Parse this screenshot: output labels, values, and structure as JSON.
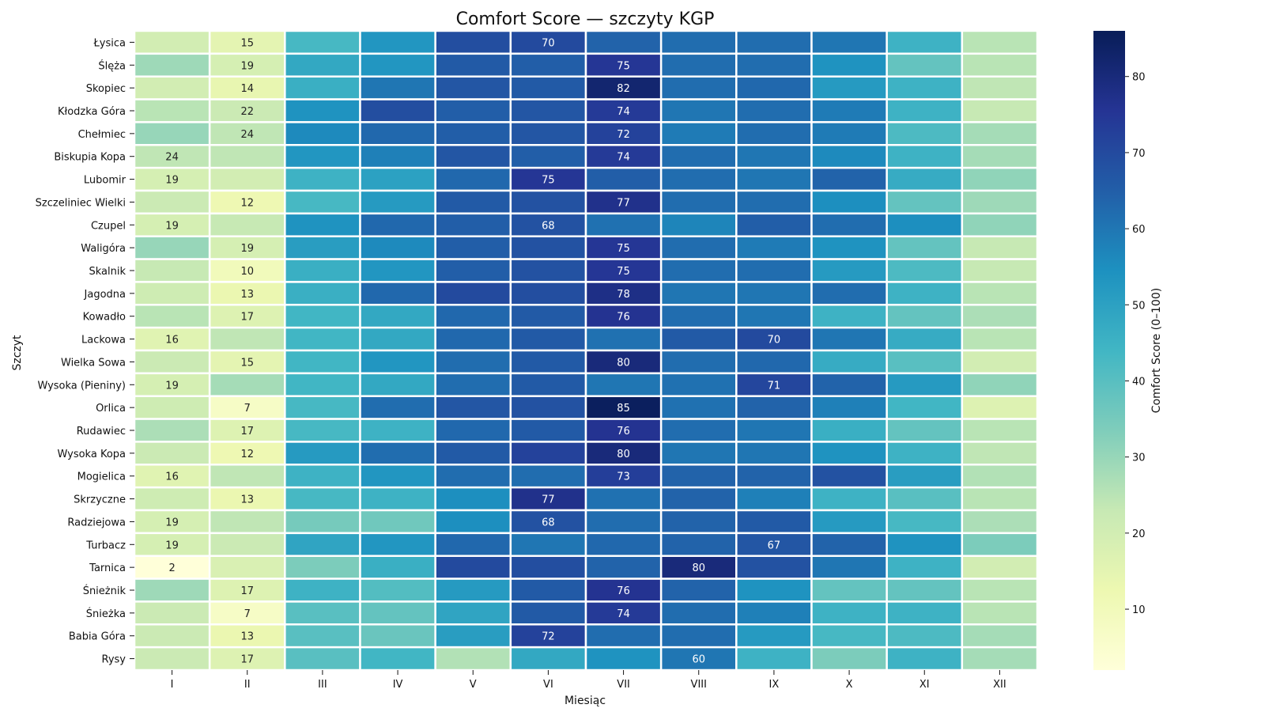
{
  "chart_data": {
    "type": "heatmap",
    "title": "Comfort Score — szczyty KGP",
    "xlabel": "Miesiąc",
    "ylabel": "Szczyt",
    "colorbar_label": "Comfort Score (0–100)",
    "colorbar_ticks": [
      10,
      20,
      30,
      40,
      50,
      60,
      70,
      80
    ],
    "colorbar_range": [
      2,
      86
    ],
    "colormap": "YlGnBu",
    "colormap_stops": [
      "#ffffd9",
      "#edf8b1",
      "#c7e9b4",
      "#7fcdbb",
      "#41b6c4",
      "#1d91c0",
      "#225ea8",
      "#253494",
      "#081d58"
    ],
    "annotations": "max and min month per row shown as text",
    "months": [
      "I",
      "II",
      "III",
      "IV",
      "V",
      "VI",
      "VII",
      "VIII",
      "IX",
      "X",
      "XI",
      "XII"
    ],
    "peaks": [
      {
        "name": "Łysica",
        "label_color": "#5aaed2",
        "values": [
          20,
          15,
          43,
          53,
          69,
          70,
          64,
          62,
          62,
          60,
          45,
          25
        ]
      },
      {
        "name": "Ślęża",
        "label_color": "#5aaed2",
        "values": [
          29,
          19,
          48,
          53,
          66,
          65,
          75,
          62,
          62,
          54,
          38,
          25
        ]
      },
      {
        "name": "Skopiec",
        "label_color": "#5aaed2",
        "values": [
          20,
          14,
          46,
          60,
          67,
          66,
          82,
          62,
          63,
          52,
          45,
          24
        ]
      },
      {
        "name": "Kłodzka Góra",
        "label_color": "#5aaed2",
        "values": [
          25,
          22,
          54,
          69,
          65,
          67,
          74,
          60,
          62,
          59,
          45,
          23
        ]
      },
      {
        "name": "Chełmiec",
        "label_color": "#5aaed2",
        "values": [
          30,
          24,
          56,
          63,
          65,
          67,
          72,
          59,
          62,
          59,
          42,
          28
        ]
      },
      {
        "name": "Biskupia Kopa",
        "label_color": "#5aaed2",
        "values": [
          24,
          24,
          53,
          58,
          67,
          65,
          74,
          62,
          60,
          56,
          45,
          28
        ]
      },
      {
        "name": "Lubomir",
        "label_color": "#5aaed2",
        "values": [
          19,
          20,
          45,
          50,
          63,
          75,
          65,
          62,
          60,
          64,
          47,
          31
        ]
      },
      {
        "name": "Szczeliniec Wielki",
        "label_color": "#5aaed2",
        "values": [
          22,
          12,
          43,
          52,
          66,
          68,
          77,
          62,
          62,
          55,
          38,
          29
        ]
      },
      {
        "name": "Czupel",
        "label_color": "#5aaed2",
        "values": [
          19,
          23,
          54,
          63,
          65,
          68,
          61,
          57,
          65,
          62,
          55,
          31
        ]
      },
      {
        "name": "Waligóra",
        "label_color": "#5aaed2",
        "values": [
          30,
          19,
          51,
          56,
          65,
          68,
          75,
          62,
          59,
          54,
          38,
          23
        ]
      },
      {
        "name": "Skalnik",
        "label_color": "#5aaed2",
        "values": [
          23,
          10,
          46,
          53,
          65,
          68,
          75,
          62,
          62,
          52,
          42,
          23
        ]
      },
      {
        "name": "Jagodna",
        "label_color": "#5aaed2",
        "values": [
          21,
          13,
          46,
          63,
          70,
          69,
          78,
          60,
          60,
          62,
          45,
          25
        ]
      },
      {
        "name": "Kowadło",
        "label_color": "#5aaed2",
        "values": [
          25,
          17,
          44,
          48,
          63,
          66,
          76,
          62,
          60,
          45,
          38,
          27
        ]
      },
      {
        "name": "Lackowa",
        "label_color": "#5aaed2",
        "values": [
          16,
          24,
          44,
          48,
          63,
          66,
          61,
          66,
          70,
          60,
          47,
          25
        ]
      },
      {
        "name": "Wielka Sowa",
        "label_color": "#2f7db8",
        "values": [
          22,
          15,
          44,
          53,
          62,
          66,
          80,
          62,
          63,
          47,
          40,
          20
        ]
      },
      {
        "name": "Wysoka (Pieniny)",
        "label_color": "#2f7db8",
        "values": [
          19,
          28,
          44,
          48,
          62,
          66,
          60,
          61,
          71,
          64,
          52,
          31
        ]
      },
      {
        "name": "Orlica",
        "label_color": "#2f7db8",
        "values": [
          21,
          7,
          43,
          62,
          67,
          68,
          85,
          61,
          64,
          58,
          44,
          17
        ]
      },
      {
        "name": "Rudawiec",
        "label_color": "#2f7db8",
        "values": [
          27,
          17,
          43,
          45,
          63,
          66,
          76,
          62,
          60,
          46,
          38,
          25
        ]
      },
      {
        "name": "Wysoka Kopa",
        "label_color": "#2f7db8",
        "values": [
          22,
          12,
          52,
          62,
          66,
          72,
          80,
          60,
          60,
          54,
          45,
          24
        ]
      },
      {
        "name": "Mogielica",
        "label_color": "#2f7db8",
        "values": [
          16,
          24,
          45,
          53,
          62,
          62,
          73,
          64,
          64,
          68,
          51,
          26
        ]
      },
      {
        "name": "Skrzyczne",
        "label_color": "#2f7db8",
        "values": [
          21,
          13,
          43,
          45,
          55,
          77,
          61,
          64,
          58,
          45,
          40,
          25
        ]
      },
      {
        "name": "Radziejowa",
        "label_color": "#2f7db8",
        "values": [
          19,
          24,
          35,
          36,
          55,
          68,
          62,
          64,
          66,
          52,
          43,
          27
        ]
      },
      {
        "name": "Turbacz",
        "label_color": "#2f7db8",
        "values": [
          19,
          22,
          49,
          53,
          63,
          60,
          63,
          64,
          67,
          64,
          54,
          34
        ]
      },
      {
        "name": "Tarnica",
        "label_color": "#2f7db8",
        "values": [
          2,
          18,
          34,
          46,
          70,
          69,
          64,
          80,
          68,
          60,
          45,
          20
        ]
      },
      {
        "name": "Śnieżnik",
        "label_color": "#173f86",
        "values": [
          29,
          17,
          45,
          41,
          52,
          66,
          76,
          64,
          54,
          38,
          38,
          25
        ]
      },
      {
        "name": "Śnieżka",
        "label_color": "#173f86",
        "values": [
          22,
          7,
          40,
          38,
          49,
          66,
          74,
          62,
          58,
          45,
          45,
          25
        ]
      },
      {
        "name": "Babia Góra",
        "label_color": "#173f86",
        "values": [
          22,
          13,
          40,
          37,
          51,
          72,
          62,
          62,
          52,
          43,
          42,
          28
        ]
      },
      {
        "name": "Rysy",
        "label_color": "#173f86",
        "values": [
          22,
          17,
          40,
          44,
          26,
          48,
          54,
          60,
          45,
          34,
          45,
          28
        ]
      }
    ]
  }
}
